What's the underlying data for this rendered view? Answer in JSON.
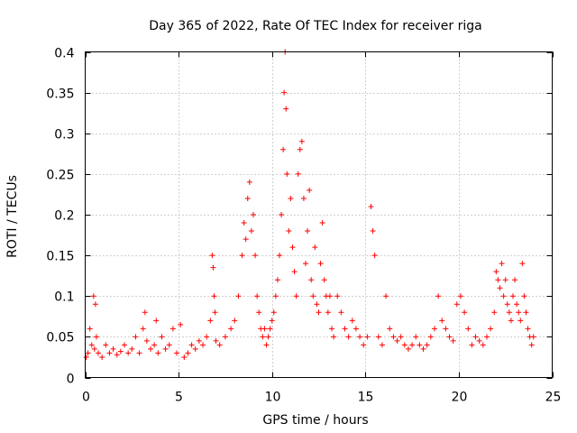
{
  "chart_data": {
    "type": "scatter",
    "title": "Day 365 of 2022, Rate Of TEC Index for receiver riga",
    "xlabel": "GPS time / hours",
    "ylabel": "ROTI / TECUs",
    "xlim": [
      0,
      25
    ],
    "ylim": [
      0,
      0.4
    ],
    "xticks": [
      0,
      5,
      10,
      15,
      20,
      25
    ],
    "xtick_labels": [
      "0",
      "5",
      "10",
      "15",
      "20",
      "25"
    ],
    "yticks": [
      0,
      0.05,
      0.1,
      0.15,
      0.2,
      0.25,
      0.3,
      0.35,
      0.4
    ],
    "ytick_labels": [
      "0",
      "0.05",
      "0.1",
      "0.15",
      "0.2",
      "0.25",
      "0.3",
      "0.35",
      "0.4"
    ],
    "grid": true,
    "marker": "+",
    "color": "#ff0000",
    "series": [
      {
        "x": [
          0.05,
          0.15,
          0.25,
          0.35,
          0.45,
          0.5,
          0.55,
          0.6,
          0.7,
          0.9,
          1.1,
          1.3,
          1.5,
          1.7,
          1.9,
          2.1,
          2.3,
          2.5,
          2.7,
          2.9,
          3.1,
          3.2,
          3.3,
          3.5,
          3.7,
          3.8,
          3.9,
          4.1,
          4.3,
          4.5,
          4.7,
          4.9,
          5.1,
          5.3,
          5.5,
          5.7,
          5.9,
          6.1,
          6.3,
          6.5,
          6.7,
          6.8,
          6.85,
          6.9,
          6.95,
          7.0,
          7.2,
          7.5,
          7.8,
          8.0,
          8.2,
          8.4,
          8.5,
          8.6,
          8.7,
          8.8,
          8.9,
          9.0,
          9.1,
          9.2,
          9.3,
          9.4,
          9.5,
          9.6,
          9.7,
          9.8,
          9.9,
          10.0,
          10.1,
          10.2,
          10.3,
          10.4,
          10.5,
          10.6,
          10.65,
          10.7,
          10.75,
          10.8,
          10.9,
          11.0,
          11.1,
          11.2,
          11.3,
          11.4,
          11.5,
          11.6,
          11.7,
          11.8,
          11.9,
          12.0,
          12.1,
          12.2,
          12.3,
          12.4,
          12.5,
          12.6,
          12.7,
          12.8,
          12.9,
          13.0,
          13.1,
          13.2,
          13.3,
          13.5,
          13.7,
          13.9,
          14.1,
          14.3,
          14.5,
          14.7,
          14.9,
          15.1,
          15.3,
          15.4,
          15.5,
          15.7,
          15.9,
          16.1,
          16.3,
          16.5,
          16.7,
          16.9,
          17.1,
          17.3,
          17.5,
          17.7,
          17.9,
          18.1,
          18.3,
          18.5,
          18.7,
          18.9,
          19.1,
          19.3,
          19.5,
          19.7,
          19.9,
          20.1,
          20.3,
          20.5,
          20.7,
          20.9,
          21.1,
          21.3,
          21.5,
          21.7,
          21.9,
          22.0,
          22.1,
          22.2,
          22.3,
          22.4,
          22.5,
          22.6,
          22.7,
          22.8,
          22.9,
          23.0,
          23.1,
          23.2,
          23.3,
          23.4,
          23.5,
          23.6,
          23.7,
          23.8,
          23.9,
          24.0
        ],
        "y": [
          0.025,
          0.03,
          0.06,
          0.04,
          0.1,
          0.035,
          0.09,
          0.05,
          0.03,
          0.025,
          0.04,
          0.03,
          0.035,
          0.028,
          0.032,
          0.04,
          0.03,
          0.035,
          0.05,
          0.03,
          0.06,
          0.08,
          0.045,
          0.035,
          0.04,
          0.07,
          0.03,
          0.05,
          0.035,
          0.04,
          0.06,
          0.03,
          0.065,
          0.025,
          0.03,
          0.04,
          0.035,
          0.045,
          0.04,
          0.05,
          0.07,
          0.15,
          0.135,
          0.1,
          0.08,
          0.045,
          0.04,
          0.05,
          0.06,
          0.07,
          0.1,
          0.15,
          0.19,
          0.17,
          0.22,
          0.24,
          0.18,
          0.2,
          0.15,
          0.1,
          0.08,
          0.06,
          0.05,
          0.06,
          0.04,
          0.05,
          0.06,
          0.07,
          0.08,
          0.1,
          0.12,
          0.15,
          0.2,
          0.28,
          0.35,
          0.4,
          0.33,
          0.25,
          0.18,
          0.22,
          0.16,
          0.13,
          0.1,
          0.25,
          0.28,
          0.29,
          0.22,
          0.14,
          0.18,
          0.23,
          0.12,
          0.1,
          0.16,
          0.09,
          0.08,
          0.14,
          0.19,
          0.12,
          0.1,
          0.08,
          0.1,
          0.06,
          0.05,
          0.1,
          0.08,
          0.06,
          0.05,
          0.07,
          0.06,
          0.05,
          0.04,
          0.05,
          0.21,
          0.18,
          0.15,
          0.05,
          0.04,
          0.1,
          0.06,
          0.05,
          0.045,
          0.05,
          0.04,
          0.035,
          0.04,
          0.05,
          0.04,
          0.035,
          0.04,
          0.05,
          0.06,
          0.1,
          0.07,
          0.06,
          0.05,
          0.045,
          0.09,
          0.1,
          0.08,
          0.06,
          0.04,
          0.05,
          0.045,
          0.04,
          0.05,
          0.06,
          0.08,
          0.13,
          0.12,
          0.11,
          0.14,
          0.1,
          0.12,
          0.09,
          0.08,
          0.07,
          0.1,
          0.12,
          0.09,
          0.08,
          0.07,
          0.14,
          0.1,
          0.08,
          0.06,
          0.05,
          0.04,
          0.05
        ]
      }
    ]
  }
}
